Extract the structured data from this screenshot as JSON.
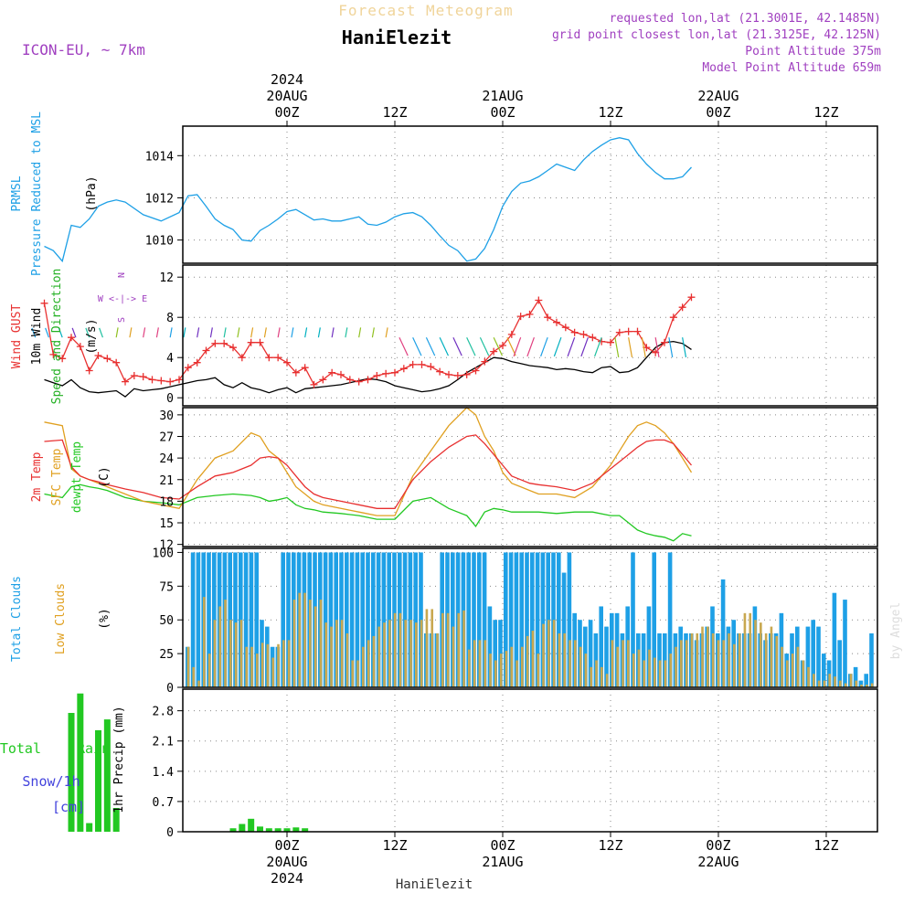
{
  "header": {
    "top_title": "Forecast Meteogram",
    "location": "HaniElezit",
    "model": "ICON-EU, ~ 7km",
    "requested": "requested lon,lat (21.3001E, 42.1485N)",
    "grid_point": "grid point closest lon,lat (21.3125E, 42.125N)",
    "point_altitude": "Point Altitude 375m",
    "model_altitude": "Model Point Altitude 659m"
  },
  "footer": {
    "location": "HaniElezit",
    "watermark": "by Angel"
  },
  "colors": {
    "pressure": "#1ea0e6",
    "gust": "#e83030",
    "wind": "#000000",
    "direction_label": "#22b022",
    "temp2m": "#e83030",
    "sfc_temp": "#e0a020",
    "dewpt": "#22c822",
    "total_clouds": "#1ea0e6",
    "low_clouds": "#c8a850",
    "rain": "#22c822",
    "snow": "#4444dd",
    "compass": "#a040c0"
  },
  "chart_data": [
    {
      "type": "line",
      "panel": "pressure",
      "labels": [
        "PRMSL",
        "Pressure Reduced to MSL"
      ],
      "unit": "(hPa)",
      "ylim": [
        1008.9,
        1015.4
      ],
      "yticks": [
        1010,
        1012,
        1014
      ],
      "x_hours": [
        -27,
        -26,
        -25,
        -24,
        -23,
        -22,
        -21,
        -20,
        -19,
        -18,
        -16,
        -14,
        -12,
        -11,
        -10,
        -9,
        -8,
        -7,
        -6,
        -5,
        -4,
        -3,
        -2,
        -1,
        0,
        1,
        2,
        3,
        4,
        5,
        6,
        7,
        8,
        9,
        10,
        11,
        12,
        13,
        14,
        15,
        16,
        17,
        18,
        19,
        20,
        21,
        22,
        23,
        24,
        25,
        26,
        27,
        28
      ],
      "pressure": [
        1009.7,
        1009.5,
        1009.0,
        1010.7,
        1010.6,
        1011.0,
        1011.6,
        1011.8,
        1011.9,
        1011.8,
        1011.2,
        1010.9,
        1011.3,
        1012.1,
        1012.15,
        1011.6,
        1011.0,
        1010.7,
        1010.5,
        1010.0,
        1009.95,
        1010.45,
        1010.7,
        1011.0,
        1011.35,
        1011.45,
        1011.2,
        1010.95,
        1011.0,
        1010.9,
        1010.9,
        1011.0,
        1011.1,
        1010.75,
        1010.7,
        1010.85,
        1011.1,
        1011.25,
        1011.3,
        1011.1,
        1010.7,
        1010.2,
        1009.75,
        1009.5,
        1009.0,
        1009.1,
        1009.6,
        1010.5,
        1011.6,
        1012.3,
        1012.7,
        1012.8,
        1013.0
      ],
      "hours_second_day": [
        28,
        29,
        30,
        31,
        32,
        33,
        34,
        35,
        36,
        37,
        38,
        39,
        40,
        41,
        42,
        43,
        44,
        45
      ],
      "pressure_second_day": [
        1013.0,
        1013.3,
        1013.6,
        1013.45,
        1013.3,
        1013.8,
        1014.2,
        1014.5,
        1014.75,
        1014.85,
        1014.75,
        1014.1,
        1013.6,
        1013.2,
        1012.9,
        1012.9,
        1013.0,
        1013.45
      ]
    },
    {
      "type": "line",
      "panel": "wind",
      "labels": [
        "Wind GUST",
        "10m Wind",
        "Speed and Direction"
      ],
      "unit": "(m/s)",
      "compass": [
        "N",
        "W <-|-> E",
        "S"
      ],
      "ylim": [
        -0.8,
        13.2
      ],
      "yticks": [
        0,
        4,
        8,
        12
      ],
      "x_hours": [
        -27,
        -26,
        -25,
        -24,
        -23,
        -22,
        -21,
        -20,
        -19,
        -18,
        -17,
        -16,
        -15,
        -14,
        -13,
        -12,
        -11,
        -10,
        -9,
        -8,
        -7,
        -6,
        -5,
        -4,
        -3,
        -2,
        -1,
        0,
        1,
        2,
        3,
        4,
        5,
        6,
        7,
        8,
        9,
        10,
        11,
        12,
        13,
        14,
        15,
        16,
        17,
        18,
        19,
        20,
        21,
        22,
        23,
        24,
        25,
        26,
        27,
        28
      ],
      "gust": [
        9.4,
        4.3,
        3.9,
        6.0,
        5.1,
        2.7,
        4.2,
        3.9,
        3.5,
        1.6,
        2.2,
        2.1,
        1.8,
        1.7,
        1.6,
        1.8,
        3.0,
        3.5,
        4.7,
        5.4,
        5.4,
        5.0,
        4.0,
        5.5,
        5.5,
        4.0,
        4.0,
        3.5,
        2.5,
        3.0,
        1.3,
        1.8,
        2.5,
        2.3,
        1.8,
        1.6,
        1.8,
        2.2,
        2.4,
        2.5,
        2.9,
        3.3,
        3.3,
        3.1,
        2.6,
        2.3,
        2.2,
        2.3,
        2.7,
        3.6,
        4.6,
        5.2,
        6.3,
        8.1,
        8.3,
        9.7
      ],
      "wind": [
        1.8,
        1.5,
        1.2,
        1.8,
        1.0,
        0.6,
        0.5,
        0.6,
        0.7,
        0.1,
        0.9,
        0.7,
        0.8,
        0.9,
        1.1,
        1.3,
        1.5,
        1.7,
        1.8,
        2.0,
        1.3,
        1.0,
        1.5,
        1.0,
        0.8,
        0.5,
        0.8,
        1.0,
        0.5,
        0.9,
        1.0,
        1.1,
        1.2,
        1.3,
        1.5,
        1.7,
        1.9,
        1.8,
        1.6,
        1.2,
        1.0,
        0.8,
        0.6,
        0.7,
        0.9,
        1.2,
        1.8,
        2.5,
        3.0,
        3.5,
        4.0,
        3.9,
        3.6,
        3.4,
        3.2,
        3.1
      ],
      "hours_second_day": [
        29,
        30,
        31,
        32,
        33,
        34,
        35,
        36,
        37,
        38,
        39,
        40,
        41,
        42,
        43,
        44,
        45
      ],
      "gust_second_day": [
        8.0,
        7.5,
        7.0,
        6.5,
        6.3,
        6.0,
        5.6,
        5.5,
        6.5,
        6.6,
        6.6,
        5.0,
        4.5,
        5.5,
        8.0,
        9.0,
        10.0
      ],
      "wind_second_day": [
        3.0,
        2.8,
        2.9,
        2.8,
        2.6,
        2.5,
        3.0,
        3.1,
        2.5,
        2.6,
        3.0,
        4.0,
        5.0,
        5.5,
        5.6,
        5.4,
        4.8
      ]
    },
    {
      "type": "line",
      "panel": "temperature",
      "labels": [
        "2m Temp",
        "SFC Temp",
        "dewpt Temp"
      ],
      "unit": "(C)",
      "ylim": [
        11.7,
        31.0
      ],
      "yticks": [
        12,
        15,
        18,
        21,
        24,
        27,
        30
      ],
      "x_hours": [
        -27,
        -25,
        -24,
        -23,
        -22,
        -21,
        -20,
        -19,
        -18,
        -16,
        -14,
        -12,
        -10,
        -8,
        -6,
        -4,
        -3,
        -2,
        -1,
        0,
        1,
        2,
        3,
        4,
        6,
        8,
        10,
        12,
        14,
        16,
        18,
        20,
        21,
        22,
        23,
        24,
        25,
        26,
        27,
        28
      ],
      "temp2m": [
        26.3,
        26.5,
        22.8,
        21.5,
        21.0,
        20.7,
        20.3,
        20.0,
        19.7,
        19.2,
        18.5,
        18.3,
        20.0,
        21.5,
        22.0,
        23.0,
        24.0,
        24.2,
        24.0,
        23.0,
        21.5,
        20.0,
        19.0,
        18.5,
        18.0,
        17.5,
        17.0,
        17.0,
        21.0,
        23.5,
        25.5,
        27.0,
        27.2,
        26.0,
        24.5,
        23.0,
        21.5,
        21.0,
        20.5,
        20.3
      ],
      "sfc_temp": [
        29.0,
        28.5,
        22.5,
        21.5,
        21.0,
        20.5,
        20.0,
        19.5,
        19.0,
        18.0,
        17.5,
        17.0,
        21.0,
        24.0,
        25.0,
        27.5,
        27.0,
        25.0,
        24.0,
        22.0,
        20.0,
        19.0,
        18.0,
        17.5,
        17.0,
        16.5,
        16.0,
        16.0,
        21.5,
        25.0,
        28.5,
        31.0,
        30.0,
        27.0,
        25.0,
        22.0,
        20.5,
        20.0,
        19.5,
        19.0
      ],
      "dewpt": [
        19.0,
        18.5,
        20.0,
        20.3,
        20.0,
        19.8,
        19.5,
        19.0,
        18.5,
        18.0,
        17.8,
        17.5,
        18.5,
        18.8,
        19.0,
        18.8,
        18.5,
        18.0,
        18.2,
        18.5,
        17.5,
        17.0,
        16.8,
        16.5,
        16.3,
        16.0,
        15.5,
        15.5,
        18.0,
        18.5,
        17.0,
        16.0,
        14.5,
        16.5,
        17.0,
        16.8,
        16.5,
        16.5,
        16.5,
        16.5
      ],
      "hours_second_day": [
        30,
        32,
        34,
        36,
        37,
        38,
        39,
        40,
        41,
        42,
        43,
        44,
        45
      ],
      "temp2m_second_day": [
        20.0,
        19.5,
        20.5,
        22.5,
        23.5,
        24.5,
        25.5,
        26.3,
        26.5,
        26.5,
        26.0,
        24.5,
        23.0
      ],
      "sfc_temp_second_day": [
        19.0,
        18.5,
        20.0,
        23.0,
        25.0,
        27.0,
        28.5,
        29.0,
        28.5,
        27.5,
        26.0,
        24.0,
        22.0
      ],
      "dewpt_second_day": [
        16.3,
        16.5,
        16.5,
        16.0,
        16.0,
        15.0,
        14.0,
        13.5,
        13.2,
        13.0,
        12.5,
        13.5,
        13.2
      ]
    },
    {
      "type": "bar",
      "panel": "clouds",
      "labels": [
        "Total Clouds",
        "Low Clouds"
      ],
      "unit": "(%)",
      "ylim": [
        0,
        103
      ],
      "yticks": [
        0,
        25,
        50,
        75,
        100
      ],
      "total": [
        30,
        100,
        100,
        100,
        100,
        100,
        100,
        100,
        100,
        100,
        100,
        100,
        100,
        100,
        50,
        45,
        30,
        30,
        100,
        100,
        100,
        100,
        100,
        100,
        100,
        100,
        100,
        100,
        100,
        100,
        100,
        100,
        100,
        100,
        100,
        100,
        100,
        100,
        100,
        100,
        100,
        100,
        100,
        100,
        100,
        40,
        40,
        40,
        100,
        100,
        100,
        100,
        100,
        100,
        100,
        100,
        100,
        60,
        50,
        50,
        100,
        100,
        100,
        100,
        100,
        100,
        100,
        100,
        100,
        100,
        100,
        85,
        100,
        55,
        50,
        45,
        50,
        40,
        60,
        45,
        55,
        55,
        40,
        60,
        100,
        40,
        40,
        60,
        100,
        40,
        40,
        100,
        40,
        45,
        40,
        40,
        35,
        40,
        45,
        60,
        40,
        80,
        45,
        50,
        40,
        40,
        40,
        60,
        40,
        35,
        40,
        40,
        55,
        25,
        40,
        45,
        20,
        45,
        50,
        45,
        25,
        20,
        70,
        35,
        65,
        10,
        15,
        5,
        10,
        40
      ],
      "low": [
        30,
        15,
        5,
        67,
        25,
        50,
        60,
        65,
        50,
        48,
        50,
        30,
        30,
        25,
        33,
        32,
        22,
        32,
        35,
        35,
        65,
        70,
        70,
        65,
        60,
        65,
        48,
        45,
        50,
        50,
        40,
        20,
        20,
        30,
        35,
        38,
        45,
        48,
        50,
        55,
        55,
        50,
        50,
        48,
        50,
        58,
        58,
        40,
        55,
        55,
        45,
        55,
        57,
        28,
        35,
        35,
        35,
        25,
        20,
        25,
        27,
        30,
        20,
        30,
        38,
        42,
        25,
        47,
        50,
        50,
        40,
        40,
        35,
        35,
        30,
        25,
        15,
        20,
        15,
        10,
        35,
        30,
        35,
        35,
        25,
        28,
        20,
        28,
        22,
        20,
        20,
        25,
        30,
        35,
        35,
        40,
        40,
        45,
        45,
        40,
        35,
        35,
        40,
        32,
        40,
        55,
        55,
        50,
        48,
        40,
        45,
        38,
        30,
        20,
        25,
        30,
        20,
        15,
        10,
        5,
        5,
        10,
        8,
        5,
        3,
        10,
        5,
        2,
        2,
        3
      ]
    },
    {
      "type": "bar",
      "panel": "precipitation",
      "labels": [
        "Total Rain",
        "Snow/1h",
        "[cm]"
      ],
      "unit": "1hr Precip (mm)",
      "ylim": [
        0,
        3.3
      ],
      "yticks": [
        0,
        0.7,
        1.4,
        2.1,
        2.8
      ],
      "x_hours": [
        -24,
        -23,
        -22,
        -21,
        -20,
        -19,
        -6,
        -5,
        -4,
        -3,
        -2,
        -1,
        0,
        1,
        2
      ],
      "rain": [
        2.75,
        3.2,
        0.2,
        2.35,
        2.6,
        0.55,
        0.08,
        0.18,
        0.3,
        0.12,
        0.08,
        0.08,
        0.08,
        0.1,
        0.08
      ]
    }
  ],
  "time_axis": {
    "top_labels": [
      {
        "time": "00Z",
        "date": "20AUG",
        "year": "2024"
      },
      {
        "time": "12Z"
      },
      {
        "time": "00Z",
        "date": "21AUG"
      },
      {
        "time": "12Z"
      },
      {
        "time": "00Z",
        "date": "22AUG"
      },
      {
        "time": "12Z"
      }
    ],
    "bottom_labels": [
      {
        "time": "00Z",
        "date": "20AUG",
        "year": "2024"
      },
      {
        "time": "12Z"
      },
      {
        "time": "00Z",
        "date": "21AUG"
      },
      {
        "time": "12Z"
      },
      {
        "time": "00Z",
        "date": "22AUG"
      },
      {
        "time": "12Z"
      }
    ]
  }
}
